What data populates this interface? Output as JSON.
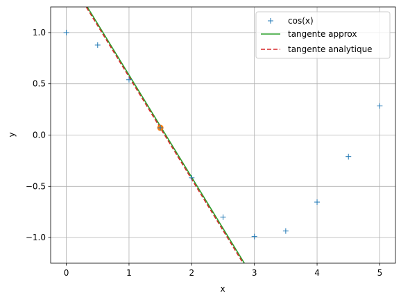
{
  "chart_data": {
    "type": "line",
    "xlabel": "x",
    "ylabel": "y",
    "xlim": [
      -0.25,
      5.25
    ],
    "ylim": [
      -1.25,
      1.25
    ],
    "grid": true,
    "legend_position": "top-right",
    "x_ticks": [
      0,
      1,
      2,
      3,
      4,
      5
    ],
    "x_tick_labels": [
      "0",
      "1",
      "2",
      "3",
      "4",
      "5"
    ],
    "y_ticks": [
      1.0,
      0.5,
      0.0,
      -0.5,
      -1.0
    ],
    "y_tick_labels": [
      "1.0",
      "0.5",
      "0.0",
      "−0.5",
      "−1.0"
    ],
    "series": [
      {
        "name": "cos(x)",
        "style": "markers-plus",
        "color": "#1f77b4",
        "x": [
          0,
          0.5,
          1,
          1.5,
          2,
          2.5,
          3,
          3.5,
          4,
          4.5,
          5
        ],
        "y": [
          1.0,
          0.878,
          0.54,
          0.071,
          -0.416,
          -0.801,
          -0.99,
          -0.936,
          -0.654,
          -0.211,
          0.284
        ]
      },
      {
        "name": "tangente approx",
        "style": "solid",
        "color": "#2ca02c",
        "x": [
          0.32,
          2.84
        ],
        "y": [
          1.265,
          -1.25
        ]
      },
      {
        "name": "tangente analytique",
        "style": "dashed",
        "color": "#d62728",
        "x": [
          0.32,
          2.82
        ],
        "y": [
          1.247,
          -1.25
        ]
      }
    ],
    "highlight_point": {
      "x": 1.5,
      "y": 0.071,
      "color": "#ff7f0e"
    }
  }
}
